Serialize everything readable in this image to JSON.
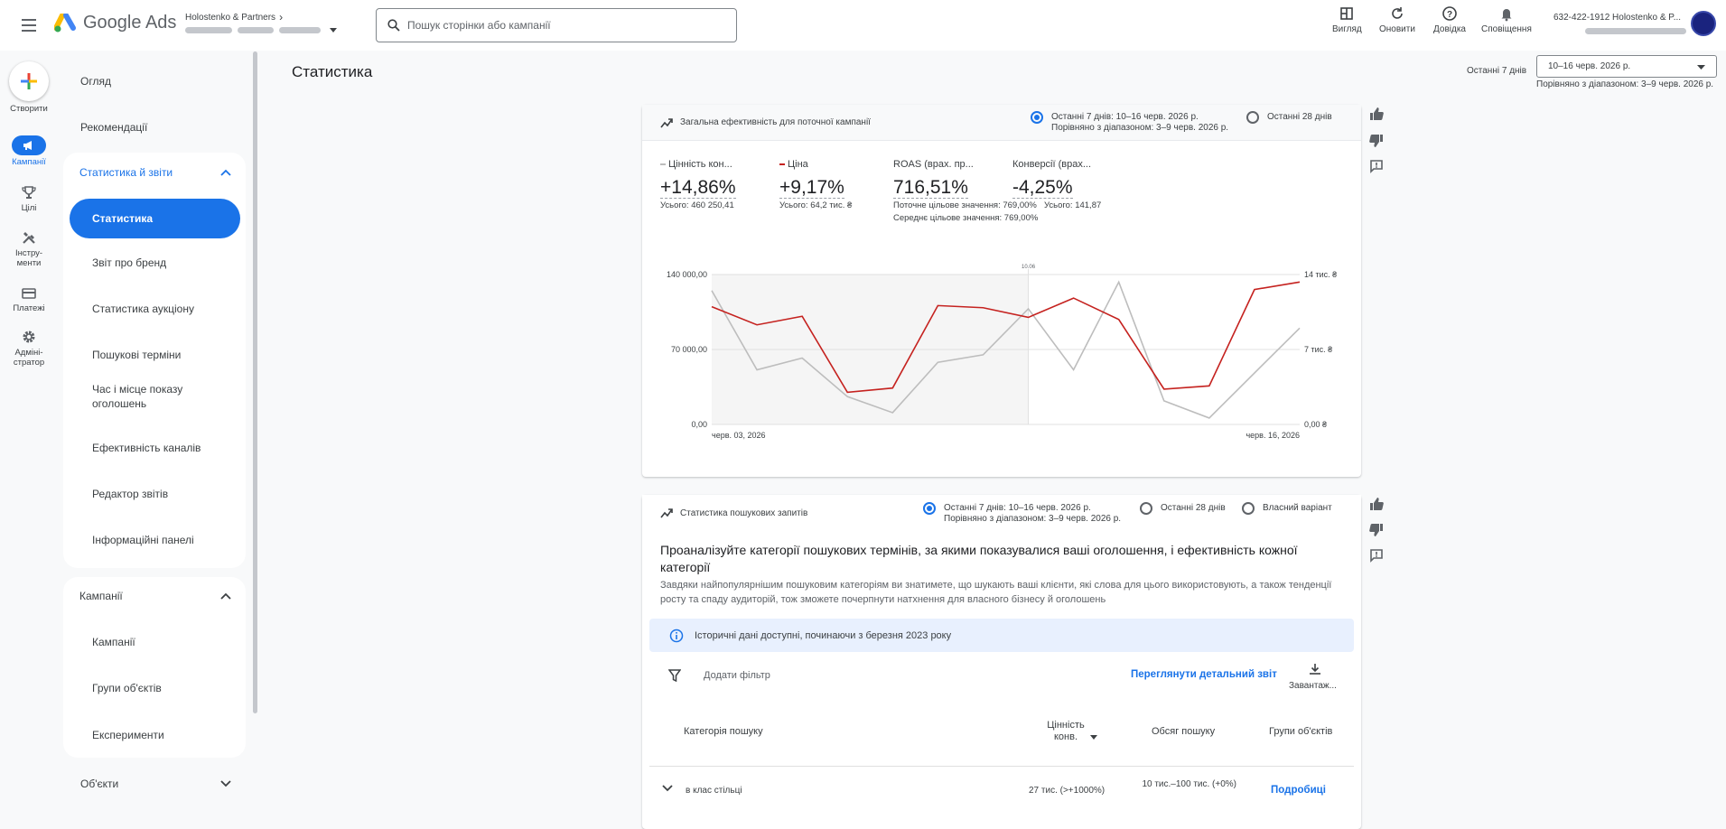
{
  "app": {
    "logo_text": "Google Ads"
  },
  "account": {
    "name": "Holostenko & Partners"
  },
  "search": {
    "placeholder": "Пошук сторінки або кампанії"
  },
  "tools": [
    {
      "label": "Вигляд",
      "icon": "view-icon"
    },
    {
      "label": "Оновити",
      "icon": "refresh-icon"
    },
    {
      "label": "Довідка",
      "icon": "help-icon"
    },
    {
      "label": "Сповіщення",
      "icon": "bell-icon"
    }
  ],
  "account_info": {
    "line1": "632-422-1912 Holostenko & P..."
  },
  "rail": {
    "create": "Створити",
    "items": [
      "Кампанії",
      "Цілі",
      "Інстру-менти",
      "Платежі",
      "Адміні-стратор"
    ]
  },
  "nav": {
    "overview": "Огляд",
    "recommendations": "Рекомендації",
    "reports_section": "Статистика й звіти",
    "reports_items": [
      "Статистика",
      "Звіт про бренд",
      "Статистика аукціону",
      "Пошукові терміни",
      "Час і місце показу оголошень",
      "Ефективність каналів",
      "Редактор звітів",
      "Інформаційні панелі"
    ],
    "campaigns_section": "Кампанії",
    "campaigns_items": [
      "Кампанії",
      "Групи об'єктів",
      "Експерименти"
    ],
    "assets_section": "Об'єкти"
  },
  "page": {
    "title": "Статистика",
    "date_label": "Останні 7 днів",
    "date_value": "10–16 черв. 2026 р.",
    "date_compare": "Порівняно з діапазоном: 3–9 черв. 2026 р."
  },
  "card1": {
    "title": "Загальна ефективність для поточної кампанії",
    "radio1": "Останні 7 днів: 10–16 черв. 2026 р.",
    "radio1_sub": "Порівняно з діапазоном: 3–9 черв. 2026 р.",
    "radio2": "Останні 28 днів",
    "metrics": [
      {
        "name": "Цінність кон...",
        "value": "+14,86%",
        "sub1": "Усього: 460 250,41",
        "sub2": ""
      },
      {
        "name": "Ціна",
        "value": "+9,17%",
        "sub1": "Усього: 64,2 тис. ₴",
        "sub2": ""
      },
      {
        "name": "ROAS (врах. пр...",
        "value": "716,51%",
        "sub1": "Поточне цільове значення: 769,00%",
        "sub2": "Середнє цільове значення: 769,00%"
      },
      {
        "name": "Конверсії (врах...",
        "value": "-4,25%",
        "sub1": "Усього: 141,87",
        "sub2": ""
      }
    ],
    "colors": {
      "grey": "#bdbdbd",
      "red": "#c5221f"
    }
  },
  "chart_data": {
    "type": "line",
    "x": [
      "черв. 03, 2026",
      "",
      "",
      "",
      "",
      "",
      "",
      "",
      "",
      "",
      "",
      "",
      "",
      "черв. 16, 2026"
    ],
    "x_tick_labels": [
      "черв. 03, 2026",
      "черв. 16, 2026"
    ],
    "marker_label": "10.06",
    "y_left_ticks": [
      "0,00",
      "70 000,00",
      "140 000,00"
    ],
    "y_left_range": [
      0,
      140000
    ],
    "y_right_ticks": [
      "0,00 ₴",
      "7 тис. ₴",
      "14 тис. ₴"
    ],
    "y_right_range": [
      0,
      14000
    ],
    "series": [
      {
        "color": "#bdbdbd",
        "axis": "left",
        "values": [
          125000,
          51000,
          62000,
          26000,
          11000,
          58000,
          65000,
          108000,
          51000,
          133000,
          22000,
          6000,
          48000,
          90000
        ]
      },
      {
        "color": "#c5221f",
        "axis": "right",
        "values": [
          11000,
          9300,
          10100,
          3000,
          3400,
          11100,
          10900,
          10000,
          11800,
          9800,
          3300,
          3600,
          12600,
          13300
        ]
      }
    ]
  },
  "card2": {
    "title": "Статистика пошукових запитів",
    "radio1": "Останні 7 днів: 10–16 черв. 2026 р.",
    "radio1_sub": "Порівняно з діапазоном: 3–9 черв. 2026 р.",
    "radio2": "Останні 28 днів",
    "radio3": "Власний варіант",
    "heading": "Проаналізуйте категорії пошукових термінів, за якими показувалися ваші оголошення, і ефективність кожної категорії",
    "desc": "Завдяки найпопулярнішим пошуковим категоріям ви знатимете, що шукають ваші клієнти, які слова для цього використовують, а також тенденції росту та спаду аудиторій, тож зможете почерпнути натхнення для власного бізнесу й оголошень",
    "info": "Історичні дані доступні, починаючи з березня 2023 року",
    "add_filter": "Додати фільтр",
    "detail_link": "Переглянути детальний звіт",
    "download": "Завантаж...",
    "columns": [
      "Категорія пошуку",
      "Цінність конв.",
      "Обсяг пошуку",
      "Групи об'єктів"
    ],
    "rows": [
      {
        "category": "в клас стільці",
        "value": "27 тис. (>+1000%)",
        "volume": "10 тис.–100 тис. (+0%)",
        "link": "Подробиці"
      }
    ]
  }
}
